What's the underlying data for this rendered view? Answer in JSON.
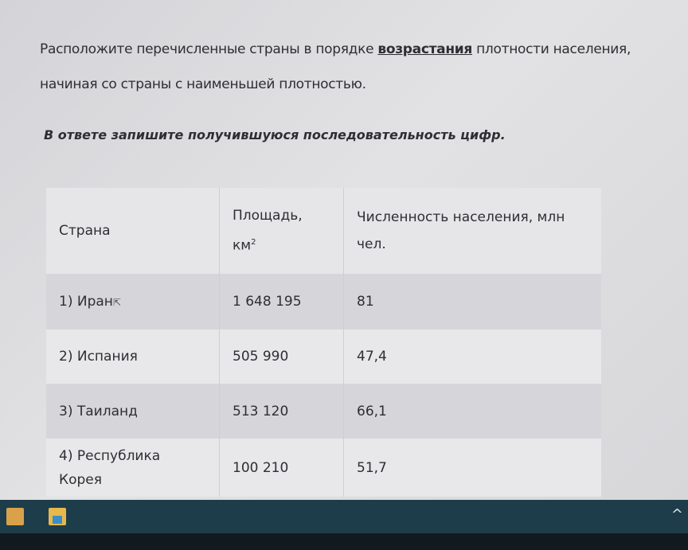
{
  "question": {
    "line1_before": "Расположите перечисленные страны в порядке ",
    "line1_emphasis": "возрастания",
    "line1_after": " плотности населения,",
    "line2": "начиная со страны с наименьшей плотностью.",
    "instruction": "В ответе запишите получившуюся последовательность цифр."
  },
  "table": {
    "headers": {
      "country": "Страна",
      "area_line1": "Площадь,",
      "area_unit": "км",
      "area_sup": "2",
      "population_line1": "Численность населения, млн",
      "population_line2": "чел."
    },
    "rows": [
      {
        "country": "1) Иран",
        "area": "1 648 195",
        "population": "81"
      },
      {
        "country": "2) Испания",
        "area": "505 990",
        "population": "47,4"
      },
      {
        "country": "3) Таиланд",
        "area": "513 120",
        "population": "66,1"
      },
      {
        "country": "4) Республика Корея",
        "area": "100 210",
        "population": "51,7"
      }
    ]
  },
  "taskbar": {
    "icons": [
      "outlook-icon",
      "file-explorer-icon"
    ],
    "tray_chevron": "^"
  }
}
